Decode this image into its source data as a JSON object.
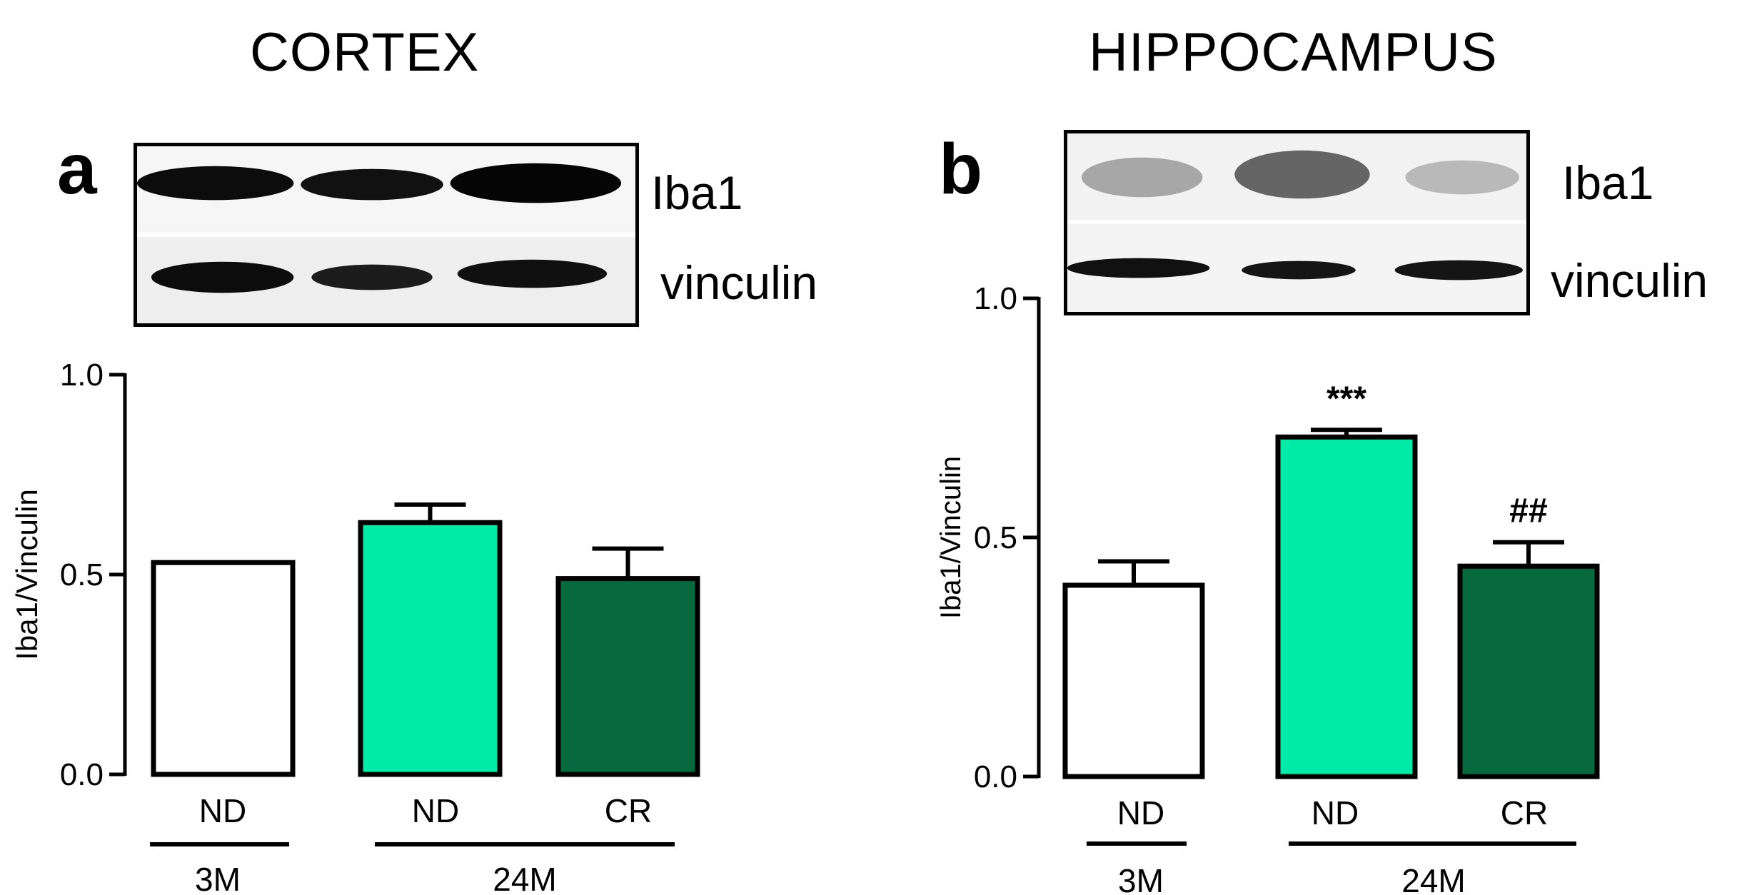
{
  "chart_data": [
    {
      "type": "bar",
      "panel_label": "a",
      "title": "CORTEX",
      "blot_labels": [
        "Iba1",
        "vinculin"
      ],
      "ylabel": "Iba1/Vinculin",
      "ylim": [
        0,
        1.0
      ],
      "yticks": [
        "0.0",
        "0.5",
        "1.0"
      ],
      "categories": [
        "ND",
        "ND",
        "CR"
      ],
      "groups": [
        {
          "label": "3M",
          "span": [
            0,
            0
          ]
        },
        {
          "label": "24M",
          "span": [
            1,
            2
          ]
        }
      ],
      "values": [
        0.53,
        0.63,
        0.49
      ],
      "errors": [
        0,
        0.045,
        0.075
      ],
      "colors": [
        "#ffffff",
        "#00eaa8",
        "#066a3e"
      ],
      "annotations": [
        "",
        "",
        ""
      ]
    },
    {
      "type": "bar",
      "panel_label": "b",
      "title": "HIPPOCAMPUS",
      "blot_labels": [
        "Iba1",
        "vinculin"
      ],
      "ylabel": "Iba1/Vinculin",
      "ylim": [
        0,
        1.0
      ],
      "yticks": [
        "0.0",
        "0.5",
        "1.0"
      ],
      "categories": [
        "ND",
        "ND",
        "CR"
      ],
      "groups": [
        {
          "label": "3M",
          "span": [
            0,
            0
          ]
        },
        {
          "label": "24M",
          "span": [
            1,
            2
          ]
        }
      ],
      "values": [
        0.4,
        0.71,
        0.44
      ],
      "errors": [
        0.05,
        0.015,
        0.05
      ],
      "colors": [
        "#ffffff",
        "#00eaa8",
        "#066a3e"
      ],
      "annotations": [
        "",
        "***",
        "##"
      ]
    }
  ]
}
